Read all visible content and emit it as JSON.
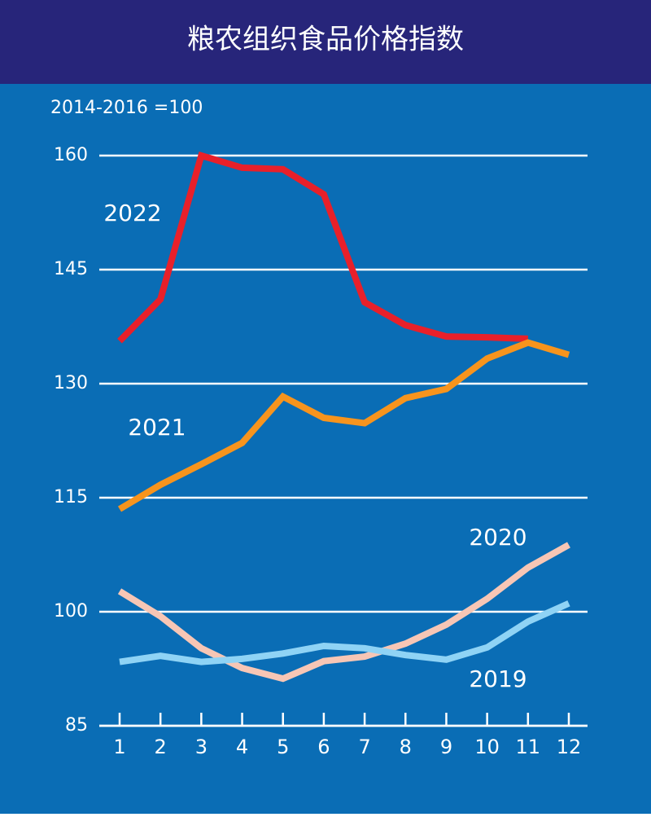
{
  "chart_data": {
    "type": "line",
    "title": "粮农组织食品价格指数",
    "subtitle": "2014-2016 =100",
    "categories": [
      "1",
      "2",
      "3",
      "4",
      "5",
      "6",
      "7",
      "8",
      "9",
      "10",
      "11",
      "12"
    ],
    "ylim": [
      85,
      160
    ],
    "yticks": [
      85,
      100,
      115,
      130,
      145,
      160
    ],
    "grid": true,
    "series": [
      {
        "name": "2022",
        "color": "#e8202a",
        "values": [
          135.6,
          141.1,
          160,
          158.4,
          158.2,
          154.9,
          140.7,
          137.7,
          136.2,
          136.1,
          135.9,
          null
        ]
      },
      {
        "name": "2021",
        "color": "#f7941d",
        "values": [
          113.5,
          116.7,
          119.4,
          122.2,
          128.3,
          125.5,
          124.8,
          128.1,
          129.3,
          133.3,
          135.4,
          133.8
        ]
      },
      {
        "name": "2020",
        "color": "#f7c6b5",
        "values": [
          102.7,
          99.4,
          95.2,
          92.6,
          91.2,
          93.5,
          94.1,
          95.8,
          98.3,
          101.7,
          105.8,
          108.8
        ]
      },
      {
        "name": "2019",
        "color": "#8fd3f5",
        "values": [
          93.4,
          94.2,
          93.4,
          93.8,
          94.5,
          95.5,
          95.2,
          94.3,
          93.7,
          95.3,
          98.7,
          101.1
        ]
      }
    ]
  }
}
